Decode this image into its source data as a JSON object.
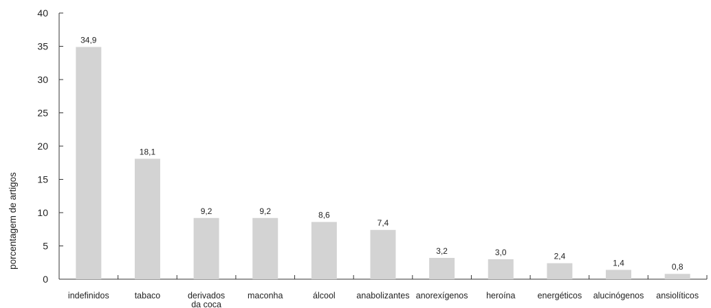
{
  "chart_data": {
    "type": "bar",
    "title": "",
    "xlabel": "",
    "ylabel": "porcentagem de artigos",
    "ylim": [
      0,
      40
    ],
    "yticks": [
      "0",
      "5",
      "10",
      "15",
      "20",
      "25",
      "30",
      "35",
      "40"
    ],
    "grid": false,
    "legend": "none",
    "bar_color": "#d3d3d3",
    "axis_color": "#333333",
    "categories": [
      [
        "indefinidos"
      ],
      [
        "tabaco"
      ],
      [
        "derivados",
        "da coca"
      ],
      [
        "maconha"
      ],
      [
        "álcool"
      ],
      [
        "anabolizantes"
      ],
      [
        "anorexígenos"
      ],
      [
        "heroína"
      ],
      [
        "energéticos"
      ],
      [
        "alucinógenos"
      ],
      [
        "ansiolíticos"
      ]
    ],
    "values": [
      34.9,
      18.1,
      9.2,
      9.2,
      8.6,
      7.4,
      3.2,
      3.0,
      2.4,
      1.4,
      0.8
    ],
    "value_labels": [
      "34,9",
      "18,1",
      "9,2",
      "9,2",
      "8,6",
      "7,4",
      "3,2",
      "3,0",
      "2,4",
      "1,4",
      "0,8"
    ]
  }
}
